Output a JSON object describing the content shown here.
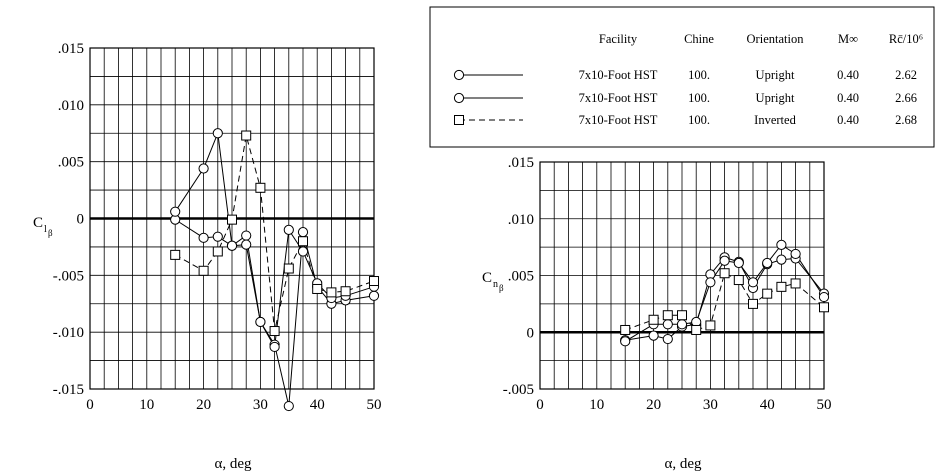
{
  "legend": {
    "headers": {
      "facility": "Facility",
      "chine": "Chine",
      "orientation": "Orientation",
      "mach": "M∞",
      "reynolds": "Rc̄/10⁶"
    },
    "rows": [
      {
        "facility": "7x10-Foot HST",
        "chine": "100.",
        "orientation": "Upright",
        "mach": "0.40",
        "reynolds": "2.62",
        "marker": "circle",
        "line": "solid"
      },
      {
        "facility": "7x10-Foot HST",
        "chine": "100.",
        "orientation": "Upright",
        "mach": "0.40",
        "reynolds": "2.66",
        "marker": "circle",
        "line": "solid"
      },
      {
        "facility": "7x10-Foot HST",
        "chine": "100.",
        "orientation": "Inverted",
        "mach": "0.40",
        "reynolds": "2.68",
        "marker": "square",
        "line": "dashed"
      }
    ]
  },
  "chart_data": [
    {
      "type": "line",
      "ylabel": "Clβ",
      "xlabel": "α, deg",
      "xlim": [
        0,
        50
      ],
      "ylim": [
        -0.015,
        0.015
      ],
      "xticks": [
        0,
        10,
        20,
        30,
        40,
        50
      ],
      "yticks": [
        -0.015,
        -0.01,
        -0.005,
        0,
        0.005,
        0.01,
        0.015
      ],
      "ytick_labels": [
        "-.015",
        "-.010",
        "-.005",
        "0",
        ".005",
        ".010",
        ".015"
      ],
      "grid": true,
      "series": [
        {
          "marker": "circle",
          "line": "solid",
          "x": [
            15,
            20,
            22.5,
            25,
            27.5,
            30,
            32.5,
            35,
            37.5,
            40,
            42.5,
            45,
            50
          ],
          "y": [
            -0.0001,
            -0.0017,
            -0.0016,
            -0.0024,
            -0.0015,
            -0.0091,
            -0.0111,
            -0.0165,
            -0.0012,
            -0.006,
            -0.0075,
            -0.0072,
            -0.0068
          ]
        },
        {
          "marker": "circle",
          "line": "solid",
          "x": [
            15,
            20,
            22.5,
            25,
            27.5,
            30,
            32.5,
            35,
            37.5,
            40,
            42.5,
            45,
            50
          ],
          "y": [
            0.0006,
            0.0044,
            0.0075,
            -0.0024,
            -0.0023,
            -0.0091,
            -0.0113,
            -0.001,
            -0.0029,
            -0.0057,
            -0.007,
            -0.0068,
            -0.006
          ]
        },
        {
          "marker": "square",
          "line": "dashed",
          "x": [
            15,
            20,
            22.5,
            25,
            27.5,
            30,
            32.5,
            35,
            37.5,
            40,
            42.5,
            45,
            50
          ],
          "y": [
            -0.0032,
            -0.0046,
            -0.0029,
            -0.0001,
            0.0073,
            0.0027,
            -0.0099,
            -0.0044,
            -0.002,
            -0.0062,
            -0.0065,
            -0.0064,
            -0.0055
          ]
        }
      ]
    },
    {
      "type": "line",
      "ylabel": "Cnβ",
      "xlabel": "α, deg",
      "xlim": [
        0,
        50
      ],
      "ylim": [
        -0.005,
        0.015
      ],
      "xticks": [
        0,
        10,
        20,
        30,
        40,
        50
      ],
      "yticks": [
        -0.005,
        0,
        0.005,
        0.01,
        0.015
      ],
      "ytick_labels": [
        "-.005",
        "0",
        ".005",
        ".010",
        ".015"
      ],
      "grid": true,
      "series": [
        {
          "marker": "circle",
          "line": "solid",
          "x": [
            15,
            20,
            22.5,
            25,
            27.5,
            30,
            32.5,
            35,
            37.5,
            40,
            42.5,
            45,
            50
          ],
          "y": [
            -0.0007,
            -0.0003,
            -0.0006,
            0.0005,
            0.0007,
            0.0051,
            0.0066,
            0.0062,
            0.0039,
            0.006,
            0.0064,
            0.0065,
            0.0034
          ]
        },
        {
          "marker": "circle",
          "line": "solid",
          "x": [
            15,
            20,
            22.5,
            25,
            27.5,
            30,
            32.5,
            35,
            37.5,
            40,
            42.5,
            45,
            50
          ],
          "y": [
            -0.0008,
            0.0007,
            0.0007,
            0.0007,
            0.0009,
            0.0044,
            0.0063,
            0.0061,
            0.0044,
            0.0061,
            0.0077,
            0.0069,
            0.0031
          ]
        },
        {
          "marker": "square",
          "line": "dashed",
          "x": [
            15,
            20,
            22.5,
            25,
            27.5,
            30,
            32.5,
            35,
            37.5,
            40,
            42.5,
            45,
            50
          ],
          "y": [
            0.0002,
            0.0011,
            0.0015,
            0.0015,
            0.0002,
            0.0006,
            0.0052,
            0.0046,
            0.0025,
            0.0034,
            0.004,
            0.0043,
            0.0022
          ]
        }
      ]
    }
  ]
}
